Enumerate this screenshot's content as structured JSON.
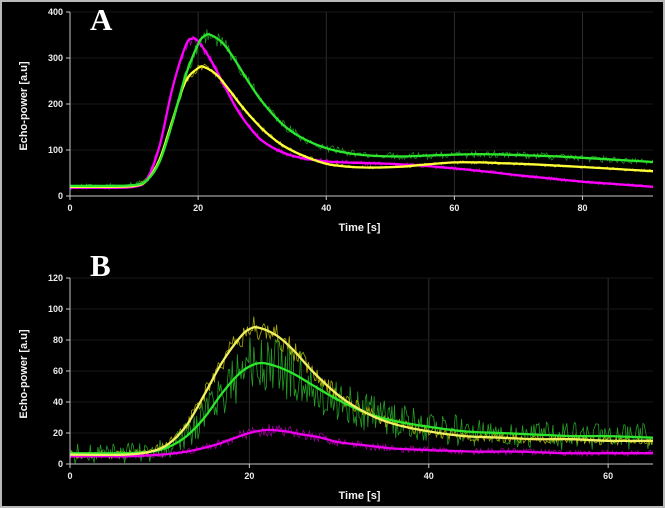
{
  "frame": {
    "background": "#000000",
    "border_color": "#b9b9b9",
    "text_color": "#f2f2f2"
  },
  "chart_data": [
    {
      "type": "line",
      "annotation": "A",
      "xlabel": "Time [s]",
      "ylabel": "Echo-power [a.u]",
      "xlim": [
        0,
        91
      ],
      "ylim": [
        0,
        400
      ],
      "xticks": [
        0,
        20,
        40,
        60,
        80
      ],
      "yticks": [
        0,
        100,
        200,
        300,
        400
      ],
      "grid": "faint-vertical",
      "legend": "none",
      "series": [
        {
          "name": "magenta-fit",
          "color": "#ff00ff",
          "noise_color": "#b000b0",
          "noise_amp": 12,
          "points": [
            [
              0,
              18
            ],
            [
              6,
              18
            ],
            [
              10,
              20
            ],
            [
              12,
              36
            ],
            [
              14,
              110
            ],
            [
              16,
              235
            ],
            [
              18,
              325
            ],
            [
              19,
              342
            ],
            [
              20,
              336
            ],
            [
              22,
              295
            ],
            [
              24,
              242
            ],
            [
              26,
              190
            ],
            [
              28,
              150
            ],
            [
              30,
              120
            ],
            [
              33,
              96
            ],
            [
              36,
              83
            ],
            [
              40,
              75
            ],
            [
              45,
              72
            ],
            [
              50,
              70
            ],
            [
              55,
              66
            ],
            [
              60,
              60
            ],
            [
              65,
              53
            ],
            [
              70,
              45
            ],
            [
              75,
              38
            ],
            [
              80,
              31
            ],
            [
              85,
              26
            ],
            [
              91,
              20
            ]
          ]
        },
        {
          "name": "yellow-fit",
          "color": "#ffff38",
          "noise_color": "#9d9d00",
          "noise_amp": 8,
          "points": [
            [
              0,
              20
            ],
            [
              6,
              20
            ],
            [
              10,
              22
            ],
            [
              12,
              34
            ],
            [
              14,
              80
            ],
            [
              16,
              165
            ],
            [
              18,
              248
            ],
            [
              20,
              278
            ],
            [
              21,
              280
            ],
            [
              23,
              262
            ],
            [
              25,
              228
            ],
            [
              27,
              192
            ],
            [
              30,
              146
            ],
            [
              33,
              112
            ],
            [
              36,
              90
            ],
            [
              40,
              70
            ],
            [
              44,
              63
            ],
            [
              48,
              62
            ],
            [
              52,
              64
            ],
            [
              56,
              69
            ],
            [
              60,
              73
            ],
            [
              64,
              73
            ],
            [
              68,
              71
            ],
            [
              72,
              69
            ],
            [
              76,
              66
            ],
            [
              80,
              63
            ],
            [
              85,
              59
            ],
            [
              91,
              54
            ]
          ]
        },
        {
          "name": "green-fit",
          "color": "#2de62d",
          "noise_color": "#1d8f1d",
          "noise_amp": 18,
          "points": [
            [
              0,
              22
            ],
            [
              6,
              22
            ],
            [
              10,
              24
            ],
            [
              12,
              34
            ],
            [
              14,
              75
            ],
            [
              16,
              160
            ],
            [
              18,
              260
            ],
            [
              20,
              330
            ],
            [
              21,
              348
            ],
            [
              22,
              350
            ],
            [
              24,
              330
            ],
            [
              26,
              290
            ],
            [
              28,
              245
            ],
            [
              30,
              205
            ],
            [
              33,
              158
            ],
            [
              36,
              128
            ],
            [
              40,
              104
            ],
            [
              44,
              92
            ],
            [
              48,
              87
            ],
            [
              52,
              86
            ],
            [
              56,
              88
            ],
            [
              60,
              90
            ],
            [
              64,
              91
            ],
            [
              68,
              90
            ],
            [
              72,
              88
            ],
            [
              76,
              86
            ],
            [
              80,
              83
            ],
            [
              85,
              79
            ],
            [
              91,
              74
            ]
          ]
        }
      ]
    },
    {
      "type": "line",
      "annotation": "B",
      "xlabel": "Time [s]",
      "ylabel": "Echo-power [a.u]",
      "xlim": [
        0,
        65
      ],
      "ylim": [
        0,
        120
      ],
      "xticks": [
        0,
        20,
        40,
        60
      ],
      "yticks": [
        0,
        20,
        40,
        60,
        80,
        100,
        120
      ],
      "grid": "faint-vertical",
      "legend": "none",
      "series": [
        {
          "name": "magenta-fit",
          "color": "#ee00ee",
          "noise_color": "#990099",
          "noise_amp": 4,
          "points": [
            [
              0,
              5
            ],
            [
              6,
              5
            ],
            [
              10,
              6
            ],
            [
              13,
              8
            ],
            [
              16,
              12
            ],
            [
              18,
              16
            ],
            [
              20,
              20
            ],
            [
              22,
              22
            ],
            [
              24,
              21
            ],
            [
              26,
              19
            ],
            [
              28,
              17
            ],
            [
              30,
              14
            ],
            [
              33,
              12
            ],
            [
              36,
              10
            ],
            [
              40,
              9
            ],
            [
              45,
              8
            ],
            [
              50,
              8
            ],
            [
              55,
              7
            ],
            [
              60,
              7
            ],
            [
              65,
              7
            ]
          ]
        },
        {
          "name": "green-fit",
          "color": "#2de62d",
          "noise_color": "#249c24",
          "noise_amp": 20,
          "points": [
            [
              0,
              7
            ],
            [
              6,
              7
            ],
            [
              9,
              8
            ],
            [
              11,
              11
            ],
            [
              13,
              18
            ],
            [
              15,
              30
            ],
            [
              17,
              46
            ],
            [
              19,
              59
            ],
            [
              21,
              65
            ],
            [
              23,
              63
            ],
            [
              25,
              58
            ],
            [
              27,
              51
            ],
            [
              30,
              41
            ],
            [
              33,
              33
            ],
            [
              36,
              28
            ],
            [
              40,
              24
            ],
            [
              44,
              21
            ],
            [
              48,
              20
            ],
            [
              52,
              19
            ],
            [
              56,
              18
            ],
            [
              60,
              18
            ],
            [
              65,
              17
            ]
          ]
        },
        {
          "name": "yellow-fit",
          "color": "#f0f060",
          "noise_color": "#a8a800",
          "noise_amp": 8,
          "points": [
            [
              0,
              6
            ],
            [
              6,
              6
            ],
            [
              9,
              8
            ],
            [
              11,
              13
            ],
            [
              13,
              25
            ],
            [
              15,
              45
            ],
            [
              17,
              66
            ],
            [
              19,
              82
            ],
            [
              20,
              87
            ],
            [
              21,
              88
            ],
            [
              23,
              83
            ],
            [
              25,
              73
            ],
            [
              27,
              60
            ],
            [
              30,
              44
            ],
            [
              33,
              33
            ],
            [
              36,
              26
            ],
            [
              40,
              21
            ],
            [
              44,
              18
            ],
            [
              48,
              17
            ],
            [
              52,
              16
            ],
            [
              56,
              16
            ],
            [
              60,
              15
            ],
            [
              65,
              15
            ]
          ]
        }
      ]
    }
  ]
}
